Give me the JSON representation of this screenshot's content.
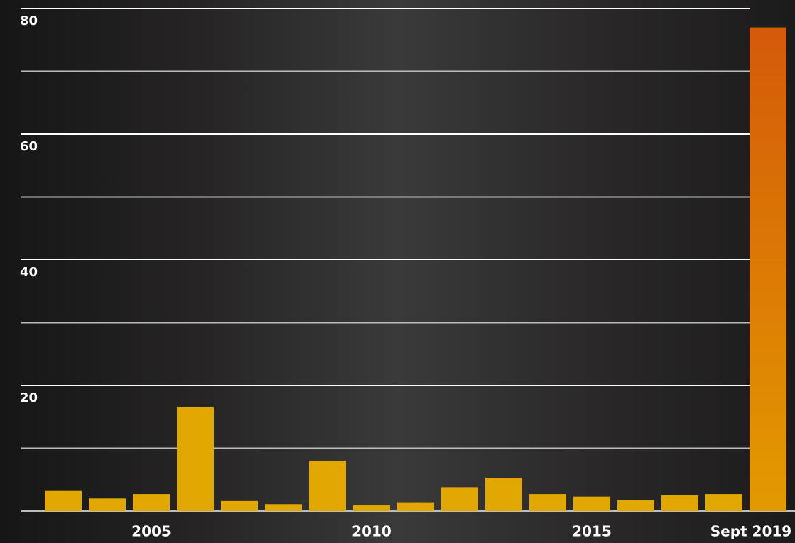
{
  "chart_data": {
    "type": "bar",
    "categories": [
      null,
      null,
      "2005",
      null,
      null,
      null,
      null,
      "2010",
      null,
      null,
      null,
      null,
      "2015",
      null,
      null,
      null,
      "Sept 2019"
    ],
    "values": [
      3.2,
      2.0,
      2.7,
      16.5,
      1.6,
      1.1,
      8.0,
      0.9,
      1.4,
      3.8,
      5.3,
      2.7,
      2.3,
      1.7,
      2.5,
      2.7,
      77
    ],
    "color": "#e0a800",
    "highlight_colors": [
      "#d45a0a",
      "#e39a00"
    ],
    "ylim": [
      0,
      80
    ],
    "yticks": [
      20,
      40,
      60,
      80
    ],
    "minor_yticks": [
      0,
      10,
      30,
      50,
      70
    ],
    "grid": true
  }
}
